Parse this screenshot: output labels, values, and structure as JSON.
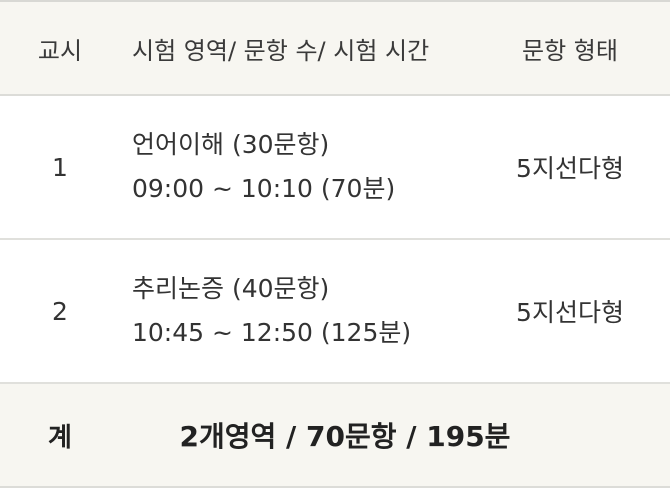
{
  "header": {
    "period": "교시",
    "area": "시험 영역/ 문항 수/ 시험 시간",
    "format": "문항 형태"
  },
  "rows": [
    {
      "period": "1",
      "area": "언어이해 (30문항)",
      "time": "09:00 ~ 10:10 (70분)",
      "format": "5지선다형"
    },
    {
      "period": "2",
      "area": "추리논증 (40문항)",
      "time": "10:45 ~ 12:50 (125분)",
      "format": "5지선다형"
    }
  ],
  "total": {
    "label": "계",
    "summary": "2개영역 / 70문항 / 195분"
  }
}
